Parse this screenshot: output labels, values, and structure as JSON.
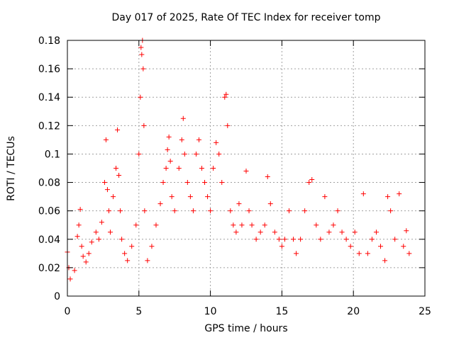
{
  "chart_data": {
    "type": "scatter",
    "title": "Day 017 of 2025, Rate Of TEC Index for receiver tomp",
    "xlabel": "GPS time / hours",
    "ylabel": "ROTI / TECUs",
    "xlim": [
      0,
      25
    ],
    "ylim": [
      0,
      0.18
    ],
    "xticks": [
      "0",
      "5",
      "10",
      "15",
      "20",
      "25"
    ],
    "yticks": [
      "0",
      "0.02",
      "0.04",
      "0.06",
      "0.08",
      "0.1",
      "0.12",
      "0.14",
      "0.16",
      "0.18"
    ],
    "grid": true,
    "marker": "+",
    "color": "#ff0000",
    "series": [
      {
        "x": [
          0.0,
          0.1,
          0.2,
          0.5,
          0.7,
          0.8,
          0.9,
          1.0,
          1.1,
          1.3,
          1.5,
          1.7,
          2.0,
          2.2,
          2.4,
          2.6,
          2.7,
          2.8,
          2.9,
          3.0,
          3.2,
          3.4,
          3.5,
          3.6,
          3.7,
          3.8,
          4.0,
          4.2,
          4.5,
          4.8,
          5.0,
          5.1,
          5.15,
          5.2,
          5.25,
          5.3,
          5.35,
          5.4,
          5.6,
          5.9,
          6.2,
          6.5,
          6.7,
          6.9,
          7.0,
          7.1,
          7.2,
          7.3,
          7.5,
          7.8,
          8.0,
          8.1,
          8.2,
          8.4,
          8.6,
          8.8,
          9.0,
          9.2,
          9.4,
          9.6,
          9.8,
          10.0,
          10.2,
          10.4,
          10.6,
          10.8,
          11.0,
          11.1,
          11.2,
          11.4,
          11.6,
          11.8,
          12.0,
          12.2,
          12.5,
          12.7,
          12.9,
          13.2,
          13.5,
          13.8,
          14.0,
          14.2,
          14.5,
          14.8,
          15.0,
          15.2,
          15.5,
          15.8,
          16.0,
          16.3,
          16.6,
          16.9,
          17.1,
          17.4,
          17.7,
          18.0,
          18.3,
          18.6,
          18.9,
          19.2,
          19.5,
          19.8,
          20.1,
          20.4,
          20.7,
          21.0,
          21.3,
          21.6,
          21.9,
          22.2,
          22.4,
          22.6,
          22.9,
          23.2,
          23.5,
          23.7,
          23.9
        ],
        "y": [
          0.031,
          0.02,
          0.012,
          0.018,
          0.042,
          0.05,
          0.061,
          0.035,
          0.028,
          0.024,
          0.03,
          0.038,
          0.045,
          0.04,
          0.052,
          0.08,
          0.11,
          0.075,
          0.06,
          0.045,
          0.07,
          0.09,
          0.117,
          0.085,
          0.06,
          0.04,
          0.03,
          0.025,
          0.035,
          0.05,
          0.1,
          0.14,
          0.175,
          0.17,
          0.18,
          0.16,
          0.12,
          0.06,
          0.025,
          0.035,
          0.05,
          0.065,
          0.08,
          0.09,
          0.103,
          0.112,
          0.095,
          0.07,
          0.06,
          0.09,
          0.11,
          0.125,
          0.1,
          0.08,
          0.07,
          0.06,
          0.1,
          0.11,
          0.09,
          0.08,
          0.07,
          0.06,
          0.09,
          0.108,
          0.1,
          0.08,
          0.14,
          0.142,
          0.12,
          0.06,
          0.05,
          0.045,
          0.065,
          0.05,
          0.088,
          0.06,
          0.05,
          0.04,
          0.045,
          0.05,
          0.084,
          0.065,
          0.045,
          0.04,
          0.035,
          0.04,
          0.06,
          0.04,
          0.03,
          0.04,
          0.06,
          0.08,
          0.082,
          0.05,
          0.04,
          0.07,
          0.045,
          0.05,
          0.06,
          0.045,
          0.04,
          0.035,
          0.045,
          0.03,
          0.072,
          0.03,
          0.04,
          0.045,
          0.035,
          0.025,
          0.07,
          0.06,
          0.04,
          0.072,
          0.035,
          0.046,
          0.03
        ]
      }
    ]
  }
}
